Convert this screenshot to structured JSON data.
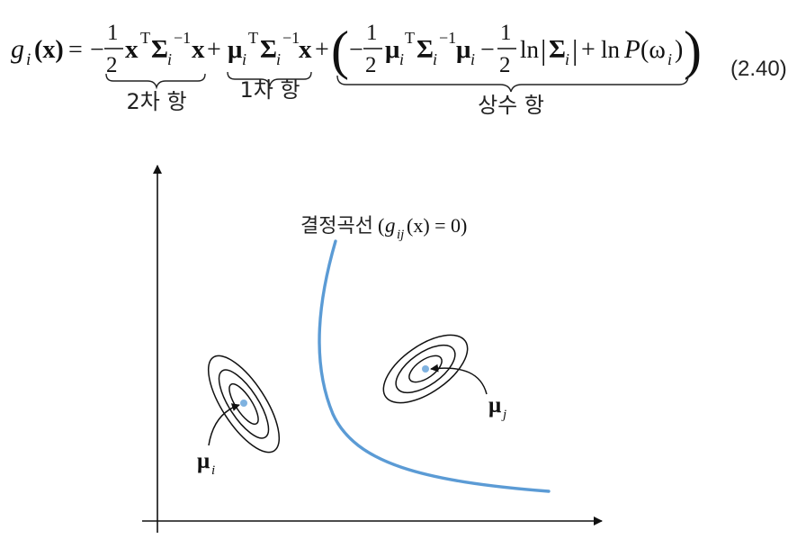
{
  "equation": {
    "lhs": "g",
    "lhs_sub": "i",
    "lhs_arg": "(x)",
    "equals": "=",
    "minus": "−",
    "plus": "+",
    "frac_num": "1",
    "frac_den": "2",
    "x": "x",
    "transpose": "T",
    "sigma": "Σ",
    "sub_i": "i",
    "inv": "−1",
    "mu": "μ",
    "ln": "ln",
    "bar": "|",
    "P": "P",
    "omega_arg": "(ω",
    "close_paren": ")",
    "big_open": "(",
    "big_close": ")",
    "number": "(2.40)"
  },
  "labels": {
    "quadratic_term": "2차 항",
    "linear_term": "1차 항",
    "constant_term": "상수 항"
  },
  "diagram": {
    "boundary_label": "결정곡선",
    "boundary_eq_open": "(",
    "boundary_eq_g": "g",
    "boundary_eq_sub": "ij",
    "boundary_eq_rest": "(x) = 0)",
    "mean_i": "μ",
    "mean_i_sub": "i",
    "mean_j": "μ",
    "mean_j_sub": "j",
    "colors": {
      "boundary": "#5b9bd5",
      "mean_dot": "#7fb2e0",
      "ink": "#111111"
    }
  }
}
